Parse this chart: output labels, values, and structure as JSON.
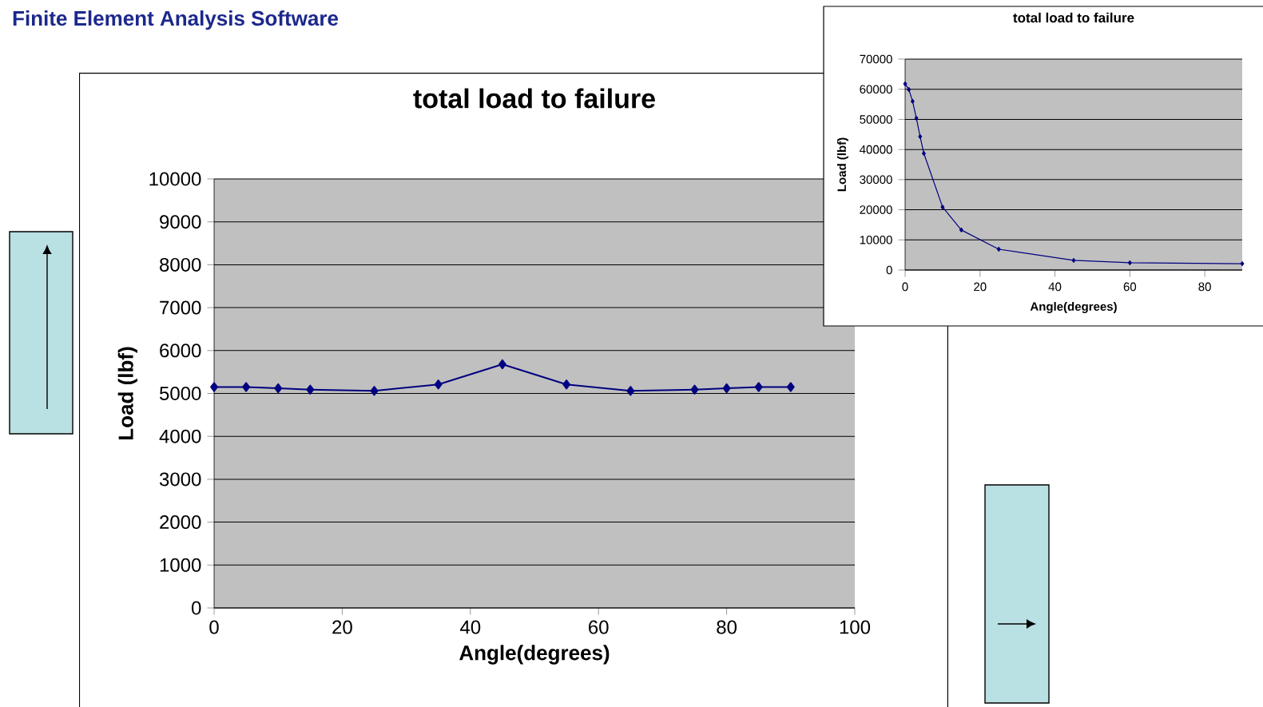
{
  "chart_data": [
    {
      "type": "line",
      "title": "total load to failure",
      "xlabel": "Angle(degrees)",
      "ylabel": "Load (lbf)",
      "annotations": [
        "Finite Element Analysis Software"
      ],
      "x": [
        0,
        5,
        10,
        15,
        25,
        35,
        45,
        55,
        65,
        75,
        80,
        85,
        90
      ],
      "series": [
        {
          "color": "#000080",
          "values": [
            5150,
            5150,
            5120,
            5090,
            5060,
            5210,
            5680,
            5210,
            5060,
            5090,
            5120,
            5150,
            5150
          ]
        }
      ],
      "xlim": [
        0,
        100
      ],
      "xticks": [
        0,
        20,
        40,
        60,
        80,
        100
      ],
      "ylim": [
        0,
        10000
      ],
      "yticks": [
        0,
        1000,
        2000,
        3000,
        4000,
        5000,
        6000,
        7000,
        8000,
        9000,
        10000
      ],
      "grid": "y",
      "marker": "diamond"
    },
    {
      "type": "line",
      "title": "total load to failure",
      "xlabel": "Angle(degrees)",
      "ylabel": "Load (lbf)",
      "x": [
        0,
        1,
        2,
        3,
        4,
        5,
        10,
        15,
        25,
        45,
        60,
        90
      ],
      "series": [
        {
          "color": "#000080",
          "values": [
            61800,
            59900,
            56000,
            50400,
            44300,
            38700,
            20900,
            13300,
            6900,
            3200,
            2400,
            2100
          ]
        }
      ],
      "xlim": [
        0,
        90
      ],
      "xticks": [
        0,
        20,
        40,
        60,
        80
      ],
      "ylim": [
        0,
        70000
      ],
      "yticks": [
        0,
        10000,
        20000,
        30000,
        40000,
        50000,
        60000,
        70000
      ],
      "grid": "y",
      "marker": "diamond"
    }
  ]
}
